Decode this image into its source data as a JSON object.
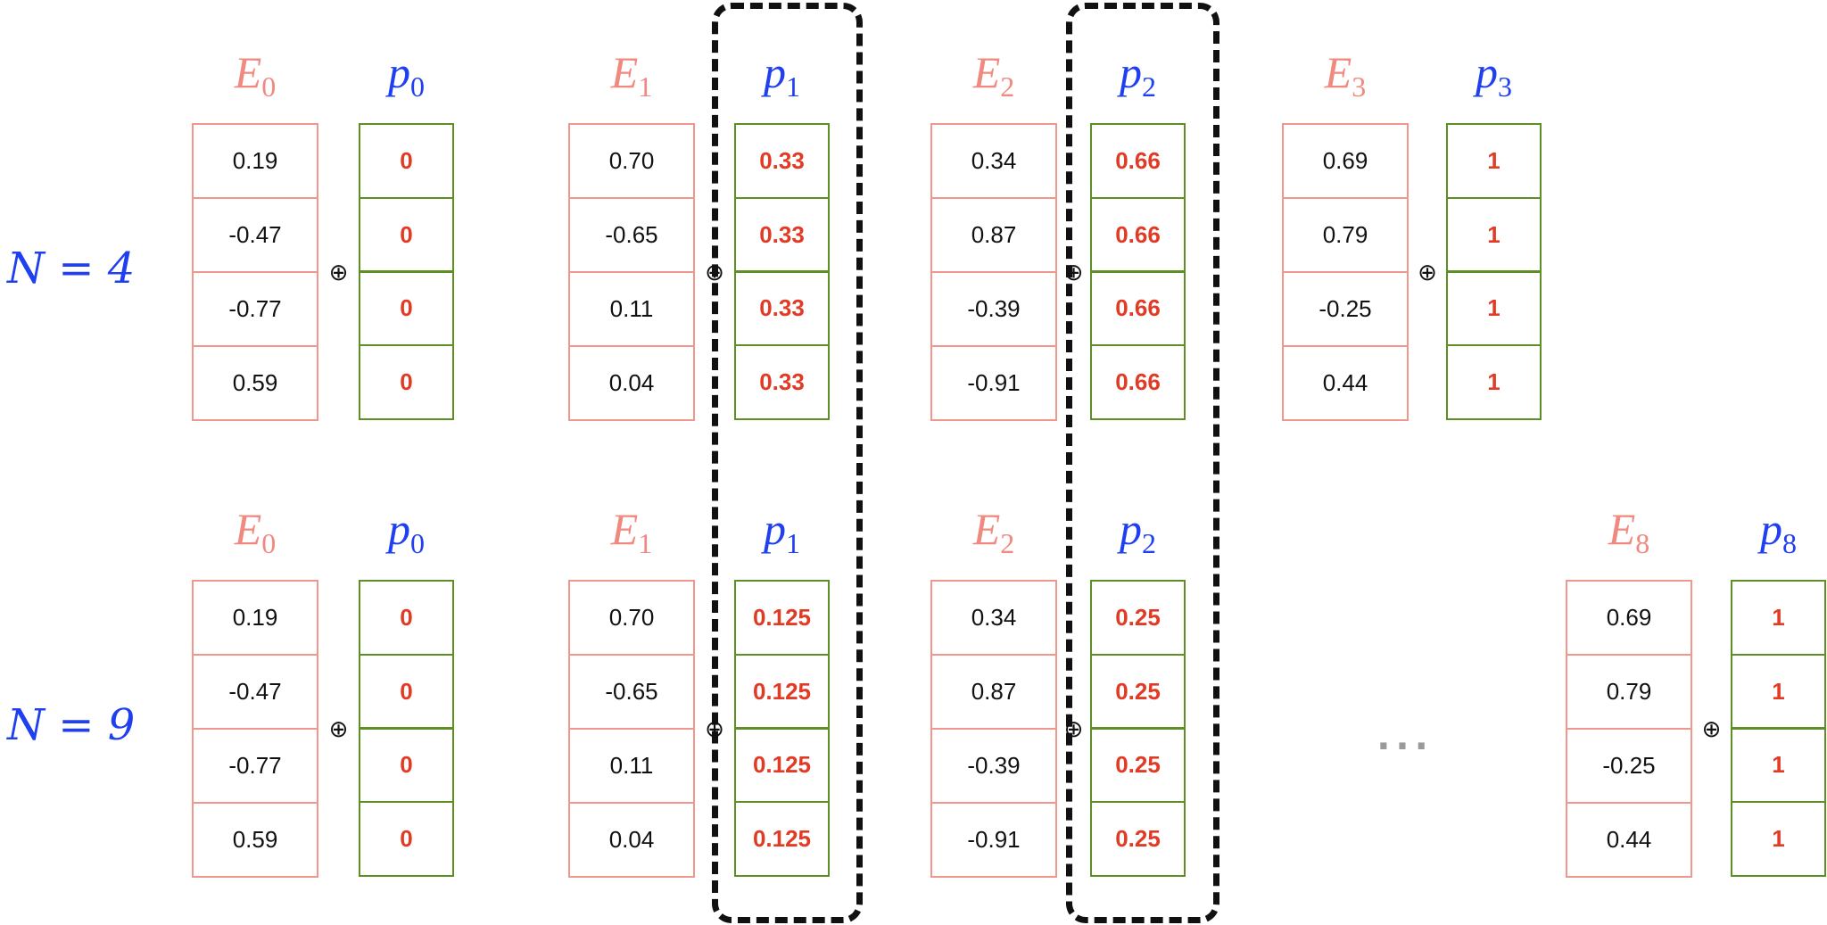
{
  "rows": [
    {
      "n_label": "N = 4",
      "blocks": [
        {
          "e_name": "E",
          "e_sub": "0",
          "p_name": "p",
          "p_sub": "0",
          "e_values": [
            "0.19",
            "-0.47",
            "-0.77",
            "0.59"
          ],
          "p_values": [
            "0",
            "0",
            "0",
            "0"
          ]
        },
        {
          "e_name": "E",
          "e_sub": "1",
          "p_name": "p",
          "p_sub": "1",
          "e_values": [
            "0.70",
            "-0.65",
            "0.11",
            "0.04"
          ],
          "p_values": [
            "0.33",
            "0.33",
            "0.33",
            "0.33"
          ]
        },
        {
          "e_name": "E",
          "e_sub": "2",
          "p_name": "p",
          "p_sub": "2",
          "e_values": [
            "0.34",
            "0.87",
            "-0.39",
            "-0.91"
          ],
          "p_values": [
            "0.66",
            "0.66",
            "0.66",
            "0.66"
          ]
        },
        {
          "e_name": "E",
          "e_sub": "3",
          "p_name": "p",
          "p_sub": "3",
          "e_values": [
            "0.69",
            "0.79",
            "-0.25",
            "0.44"
          ],
          "p_values": [
            "1",
            "1",
            "1",
            "1"
          ]
        }
      ]
    },
    {
      "n_label": "N = 9",
      "blocks": [
        {
          "e_name": "E",
          "e_sub": "0",
          "p_name": "p",
          "p_sub": "0",
          "e_values": [
            "0.19",
            "-0.47",
            "-0.77",
            "0.59"
          ],
          "p_values": [
            "0",
            "0",
            "0",
            "0"
          ]
        },
        {
          "e_name": "E",
          "e_sub": "1",
          "p_name": "p",
          "p_sub": "1",
          "e_values": [
            "0.70",
            "-0.65",
            "0.11",
            "0.04"
          ],
          "p_values": [
            "0.125",
            "0.125",
            "0.125",
            "0.125"
          ]
        },
        {
          "e_name": "E",
          "e_sub": "2",
          "p_name": "p",
          "p_sub": "2",
          "e_values": [
            "0.34",
            "0.87",
            "-0.39",
            "-0.91"
          ],
          "p_values": [
            "0.25",
            "0.25",
            "0.25",
            "0.25"
          ]
        },
        {
          "e_name": "E",
          "e_sub": "8",
          "p_name": "p",
          "p_sub": "8",
          "e_values": [
            "0.69",
            "0.79",
            "-0.25",
            "0.44"
          ],
          "p_values": [
            "1",
            "1",
            "1",
            "1"
          ]
        }
      ],
      "ellipsis": "..."
    }
  ],
  "plus_symbol": "⊕",
  "colors": {
    "embedding_border": "#f0978d",
    "position_border": "#5e8f25",
    "position_value": "#e23b25",
    "label_blue": "#1f3ff0",
    "label_salmon": "#f08a80"
  }
}
